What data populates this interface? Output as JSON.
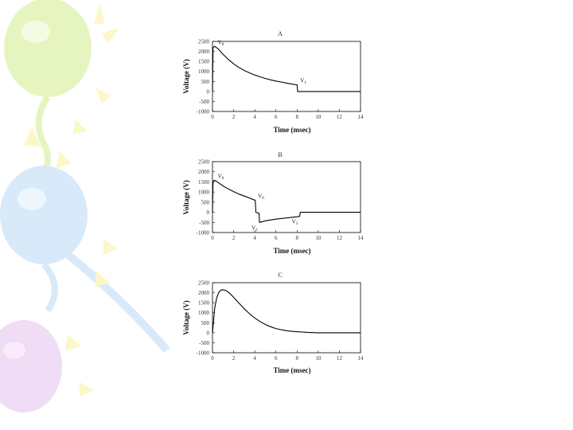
{
  "chart_data": [
    {
      "type": "line",
      "panel_label": "A",
      "xlabel": "Time (msec)",
      "ylabel": "Voltage (V)",
      "xlim": [
        0,
        14
      ],
      "ylim": [
        -1000,
        2500
      ],
      "xticks": [
        "0",
        "2",
        "4",
        "6",
        "8",
        "10",
        "12",
        "14"
      ],
      "yticks": [
        "-1000",
        "-500",
        "0",
        "500",
        "1000",
        "1500",
        "2000",
        "2500"
      ],
      "series": [
        {
          "x": [
            0,
            0.05,
            0.2,
            0.5,
            1,
            1.5,
            2,
            2.5,
            3,
            3.5,
            4,
            4.5,
            5,
            5.5,
            6,
            6.5,
            7,
            7.5,
            8,
            8.05,
            8.1,
            14
          ],
          "values": [
            0,
            2200,
            2250,
            2150,
            1850,
            1600,
            1380,
            1200,
            1050,
            930,
            820,
            730,
            650,
            580,
            520,
            470,
            420,
            370,
            330,
            0,
            0,
            0
          ]
        }
      ],
      "annotations": [
        {
          "text": "V0",
          "x": 0.2,
          "y": 2250
        },
        {
          "text": "V1",
          "x": 8.0,
          "y": 330
        }
      ]
    },
    {
      "type": "line",
      "panel_label": "B",
      "xlabel": "Time (msec)",
      "ylabel": "Voltage (V)",
      "xlim": [
        0,
        14
      ],
      "ylim": [
        -1000,
        2500
      ],
      "xticks": [
        "0",
        "2",
        "4",
        "6",
        "8",
        "10",
        "12",
        "14"
      ],
      "yticks": [
        "-1000",
        "-500",
        "0",
        "500",
        "1000",
        "1500",
        "2000",
        "2500"
      ],
      "series": [
        {
          "x": [
            0,
            0.05,
            0.2,
            0.5,
            1,
            1.5,
            2,
            2.5,
            3,
            3.5,
            4,
            4.05,
            4.1,
            4.4,
            4.45,
            4.6,
            5,
            6,
            7,
            8,
            8.25,
            8.3,
            14
          ],
          "values": [
            0,
            1550,
            1580,
            1480,
            1300,
            1150,
            1020,
            900,
            800,
            700,
            600,
            580,
            0,
            -50,
            -500,
            -480,
            -420,
            -340,
            -280,
            -220,
            -200,
            0,
            0
          ]
        }
      ],
      "annotations": [
        {
          "text": "V0",
          "x": 0.2,
          "y": 1580
        },
        {
          "text": "V0",
          "x": 4.0,
          "y": 600
        },
        {
          "text": "V2",
          "x": 4.45,
          "y": -500
        },
        {
          "text": "V3",
          "x": 8.25,
          "y": -200
        }
      ]
    },
    {
      "type": "line",
      "panel_label": "C",
      "xlabel": "Time (msec)",
      "ylabel": "Voltage (V)",
      "xlim": [
        0,
        14
      ],
      "ylim": [
        -1000,
        2500
      ],
      "xticks": [
        "0",
        "2",
        "4",
        "6",
        "8",
        "10",
        "12",
        "14"
      ],
      "yticks": [
        "-1000",
        "-500",
        "0",
        "500",
        "1000",
        "1500",
        "2000",
        "2500"
      ],
      "series": [
        {
          "x": [
            0,
            0.2,
            0.4,
            0.6,
            0.8,
            1,
            1.3,
            1.6,
            2,
            2.5,
            3,
            3.5,
            4,
            4.5,
            5,
            5.5,
            6,
            6.5,
            7,
            7.5,
            8,
            9,
            10,
            14
          ],
          "values": [
            0,
            1200,
            1750,
            2020,
            2130,
            2150,
            2100,
            1980,
            1770,
            1480,
            1200,
            950,
            740,
            560,
            410,
            300,
            210,
            150,
            100,
            70,
            50,
            20,
            0,
            0
          ]
        }
      ],
      "annotations": []
    }
  ],
  "decor_colors": [
    "#dff2b0",
    "#cfe3f8",
    "#ecd6f2",
    "#fbf7c8"
  ]
}
